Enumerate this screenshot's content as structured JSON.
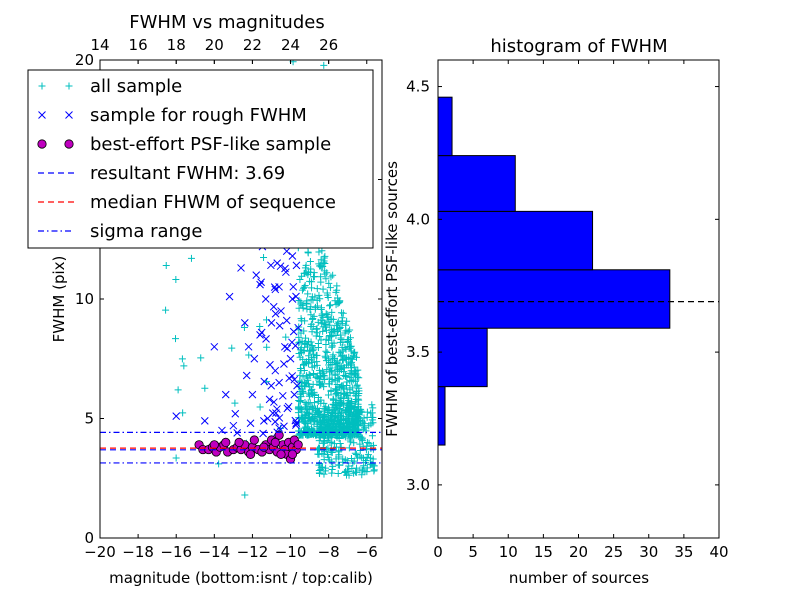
{
  "chart_data": [
    {
      "type": "scatter",
      "title": "FWHM vs magnitudes",
      "xlabel": "magnitude (bottom:isnt / top:calib)",
      "ylabel": "FWHM (pix)",
      "xlim": [
        -20,
        -5.2
      ],
      "ylim": [
        0,
        20
      ],
      "x_ticks": [
        -20,
        -18,
        -16,
        -14,
        -12,
        -10,
        -8,
        -6
      ],
      "x_tick_labels": [
        "−20",
        "−18",
        "−16",
        "−14",
        "−12",
        "−10",
        "−8",
        "−6"
      ],
      "y_ticks": [
        0,
        5,
        10,
        15,
        20
      ],
      "y_tick_labels": [
        "0",
        "5",
        "10",
        "",
        "20"
      ],
      "top_axis": {
        "ticks": [
          14,
          16,
          18,
          20,
          22,
          24,
          26
        ],
        "tick_labels": [
          "14",
          "16",
          "18",
          "20",
          "22",
          "24",
          "26"
        ],
        "offset": 34
      },
      "legend": {
        "location": "upper-left",
        "entries": [
          {
            "marker": "plus",
            "label": "all sample",
            "color": "#00bfbf"
          },
          {
            "marker": "x",
            "label": "sample for rough FWHM",
            "color": "#0000ff"
          },
          {
            "marker": "circle",
            "label": "best-effort PSF-like sample",
            "color": "#bf00bf"
          },
          {
            "marker": "dashed",
            "label": "resultant FWHM: 3.69",
            "color": "#0000ff"
          },
          {
            "marker": "dashed",
            "label": "median FHWM of sequence",
            "color": "#ff0000"
          },
          {
            "marker": "dashdot",
            "label": "sigma range",
            "color": "#0000ff"
          }
        ]
      },
      "hlines": [
        {
          "y": 3.69,
          "style": "dashed",
          "color": "#0000ff"
        },
        {
          "y": 3.76,
          "style": "dashed",
          "color": "#ff0000"
        },
        {
          "y": 4.42,
          "style": "dashdot",
          "color": "#0000ff"
        },
        {
          "y": 3.14,
          "style": "dashdot",
          "color": "#0000ff"
        }
      ],
      "series": [
        {
          "name": "all sample",
          "marker": "plus",
          "color": "#00bfbf",
          "generated": {
            "seed": 17,
            "groups": [
              {
                "n": 900,
                "x": [
                  -9.6,
                  -6.4
                ],
                "y_base": 4.3,
                "y_spread": 9.0,
                "y_peak_x": -8.6
              },
              {
                "n": 250,
                "x": [
                  -8.6,
                  -5.6
                ],
                "y": [
                  2.6,
                  5.6
                ]
              },
              {
                "n": 45,
                "x": [
                  -10.0,
                  -7.6
                ],
                "y": [
                  12.0,
                  20.0
                ]
              },
              {
                "n": 32,
                "x": [
                  -16.6,
                  -10.0
                ],
                "y": [
                  3.0,
                  16.5
                ]
              }
            ]
          },
          "points": [
            [
              -12.4,
              1.8
            ],
            [
              -15.2,
              11.7
            ],
            [
              -14.8,
              16.5
            ],
            [
              -15.6,
              7.2
            ],
            [
              -15.9,
              6.2
            ],
            [
              -13.4,
              13.3
            ]
          ]
        },
        {
          "name": "sample for rough FWHM",
          "marker": "x",
          "color": "#0000ff",
          "points": [
            [
              -16.0,
              5.1
            ],
            [
              -14.5,
              4.9
            ],
            [
              -14.0,
              8.0
            ],
            [
              -13.2,
              10.1
            ],
            [
              -13.4,
              6.0
            ],
            [
              -13.0,
              4.7
            ],
            [
              -12.8,
              4.4
            ],
            [
              -12.4,
              9.0
            ],
            [
              -12.2,
              8.0
            ],
            [
              -12.0,
              6.0
            ],
            [
              -11.9,
              7.5
            ],
            [
              -11.8,
              11.0
            ],
            [
              -11.6,
              8.5
            ],
            [
              -11.5,
              12.5
            ],
            [
              -11.3,
              10.0
            ],
            [
              -11.2,
              5.0
            ],
            [
              -11.0,
              9.0
            ],
            [
              -10.9,
              13.0
            ],
            [
              -10.8,
              7.0
            ],
            [
              -10.7,
              11.5
            ],
            [
              -10.6,
              6.5
            ],
            [
              -10.5,
              9.5
            ],
            [
              -10.4,
              14.5
            ],
            [
              -10.3,
              8.0
            ],
            [
              -10.2,
              12.0
            ],
            [
              -10.1,
              5.5
            ],
            [
              -10.0,
              7.5
            ],
            [
              -9.9,
              10.0
            ],
            [
              -9.8,
              6.0
            ],
            [
              -9.7,
              4.8
            ],
            [
              -9.6,
              8.8
            ],
            [
              -12.6,
              11.3
            ],
            [
              -11.8,
              13.8
            ],
            [
              -10.9,
              15.3
            ],
            [
              -10.4,
              16.2
            ],
            [
              -11.1,
              5.8
            ],
            [
              -12.9,
              5.2
            ],
            [
              -13.6,
              4.5
            ],
            [
              -9.9,
              11.8
            ],
            [
              -10.2,
              9.1
            ],
            [
              -10.6,
              4.6
            ],
            [
              -11.4,
              4.9
            ],
            [
              -12.1,
              4.8
            ],
            [
              -9.8,
              13.1
            ],
            [
              -10.0,
              15.0
            ],
            [
              -11.6,
              10.6
            ],
            [
              -12.3,
              6.8
            ],
            [
              -10.8,
              10.4
            ]
          ],
          "generated": {
            "seed": 29,
            "groups": [
              {
                "n": 70,
                "x": [
                  -11.6,
                  -9.6
                ],
                "y": [
                  4.3,
                  16.2
                ]
              }
            ]
          }
        },
        {
          "name": "best-effort PSF-like sample",
          "marker": "circle",
          "color": "#bf00bf",
          "points": [
            [
              -14.8,
              3.9
            ],
            [
              -14.6,
              3.7
            ],
            [
              -14.3,
              3.7
            ],
            [
              -14.1,
              3.8
            ],
            [
              -13.9,
              3.6
            ],
            [
              -13.7,
              3.8
            ],
            [
              -13.5,
              3.9
            ],
            [
              -13.3,
              3.6
            ],
            [
              -13.0,
              3.7
            ],
            [
              -12.8,
              3.8
            ],
            [
              -12.6,
              3.7
            ],
            [
              -12.4,
              3.9
            ],
            [
              -12.2,
              3.6
            ],
            [
              -12.0,
              3.8
            ],
            [
              -11.9,
              4.1
            ],
            [
              -11.7,
              3.7
            ],
            [
              -11.5,
              3.6
            ],
            [
              -11.3,
              3.9
            ],
            [
              -11.1,
              3.7
            ],
            [
              -10.9,
              3.8
            ],
            [
              -10.7,
              3.6
            ],
            [
              -10.6,
              4.3
            ],
            [
              -10.4,
              3.9
            ],
            [
              -10.3,
              3.7
            ],
            [
              -10.2,
              3.5
            ],
            [
              -10.1,
              4.0
            ],
            [
              -10.0,
              3.3
            ],
            [
              -9.9,
              3.8
            ],
            [
              -9.8,
              4.1
            ],
            [
              -9.7,
              3.7
            ],
            [
              -9.6,
              3.9
            ],
            [
              -12.7,
              4.0
            ],
            [
              -11.0,
              4.1
            ],
            [
              -10.5,
              3.5
            ],
            [
              -13.4,
              4.0
            ],
            [
              -12.1,
              3.5
            ],
            [
              -11.4,
              3.8
            ],
            [
              -10.8,
              4.0
            ],
            [
              -9.9,
              3.5
            ],
            [
              -14.0,
              3.9
            ]
          ]
        }
      ]
    },
    {
      "type": "bar",
      "orientation": "horizontal",
      "title": "histogram of FWHM",
      "xlabel": "number of sources",
      "ylabel": "FWHM of best-effort PSF-like sources",
      "xlim": [
        0,
        40
      ],
      "ylim": [
        2.8,
        4.6
      ],
      "x_ticks": [
        0,
        5,
        10,
        15,
        20,
        25,
        30,
        35,
        40
      ],
      "x_tick_labels": [
        "0",
        "5",
        "10",
        "15",
        "20",
        "25",
        "30",
        "35",
        "40"
      ],
      "y_ticks": [
        3.0,
        3.5,
        4.0,
        4.5
      ],
      "y_tick_labels": [
        "3.0",
        "3.5",
        "4.0",
        "4.5"
      ],
      "bar_color": "#0000ff",
      "bins": [
        {
          "from": 3.15,
          "to": 3.37,
          "count": 1
        },
        {
          "from": 3.37,
          "to": 3.59,
          "count": 7
        },
        {
          "from": 3.59,
          "to": 3.81,
          "count": 33
        },
        {
          "from": 3.81,
          "to": 4.03,
          "count": 22
        },
        {
          "from": 4.03,
          "to": 4.24,
          "count": 11
        },
        {
          "from": 4.24,
          "to": 4.46,
          "count": 2
        }
      ],
      "hline": {
        "y": 3.69,
        "style": "dashed",
        "color": "#000000"
      }
    }
  ]
}
